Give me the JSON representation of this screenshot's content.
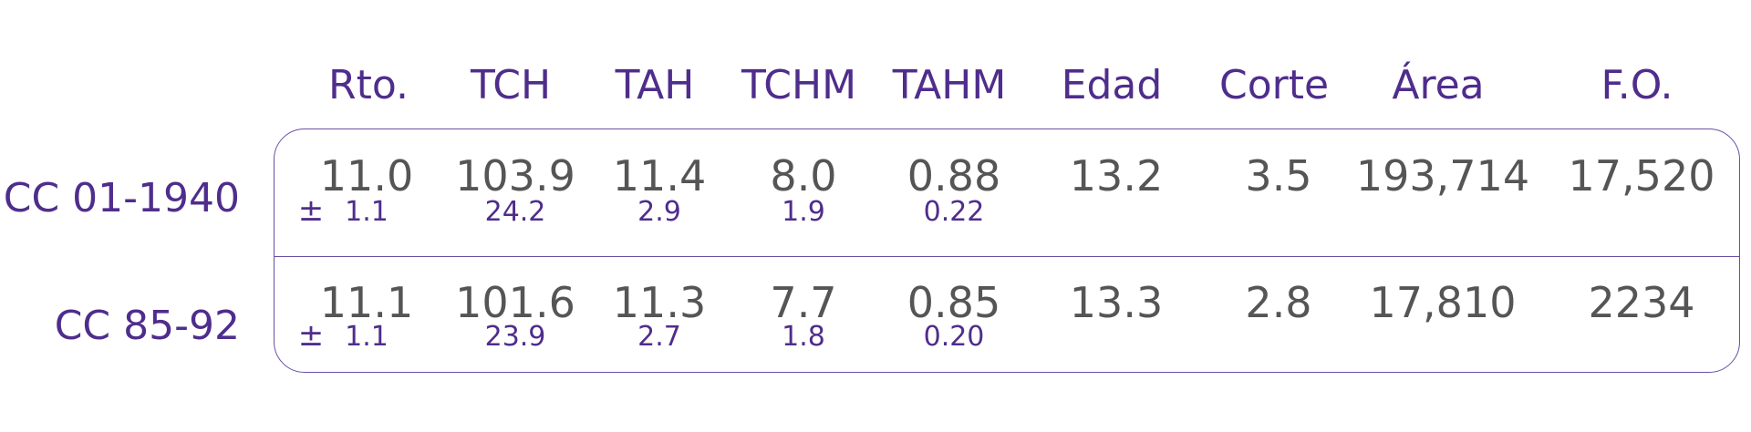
{
  "table": {
    "header": [
      "Rto.",
      "TCH",
      "TAH",
      "TCHM",
      "TAHM",
      "Edad",
      "Corte",
      "Área",
      "F.O."
    ],
    "rows": [
      {
        "label": "CC 01-1940",
        "pm": "±",
        "values": [
          "11.0",
          "103.9",
          "11.4",
          "8.0",
          "0.88",
          "13.2",
          "3.5",
          "193,714",
          "17,520"
        ],
        "sd": [
          "1.1",
          "24.2",
          "2.9",
          "1.9",
          "0.22"
        ]
      },
      {
        "label": "CC 85-92",
        "pm": "±",
        "values": [
          "11.1",
          "101.6",
          "11.3",
          "7.7",
          "0.85",
          "13.3",
          "2.8",
          "17,810",
          "2234"
        ],
        "sd": [
          "1.1",
          "23.9",
          "2.7",
          "1.8",
          "0.20"
        ]
      }
    ]
  }
}
